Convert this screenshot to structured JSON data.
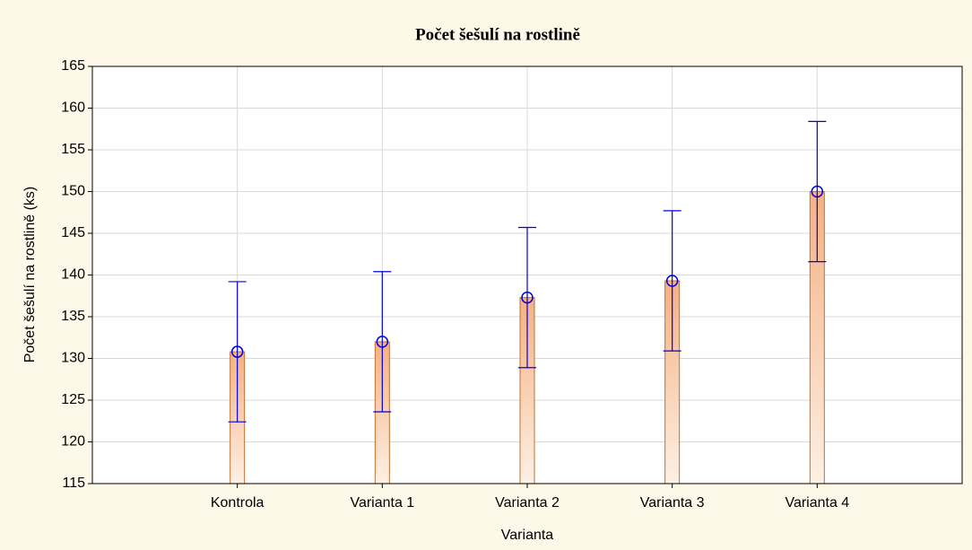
{
  "chart_data": {
    "type": "bar",
    "title": "Počet šešulí na rostlině",
    "x_label": "Varianta",
    "y_label": "Počet šešulí na rostlině (ks)",
    "categories": [
      "Kontrola",
      "Varianta 1",
      "Varianta 2",
      "Varianta 3",
      "Varianta 4"
    ],
    "values": [
      130.8,
      132.0,
      137.3,
      139.3,
      150.0
    ],
    "errors": [
      8.4,
      8.4,
      8.4,
      8.4,
      8.4
    ],
    "color": "#f4b183",
    "error_color": "#0000e0",
    "ylim": [
      115,
      165
    ],
    "yticks": [
      115,
      120,
      125,
      130,
      135,
      140,
      145,
      150,
      155,
      160,
      165
    ],
    "grid": true
  }
}
